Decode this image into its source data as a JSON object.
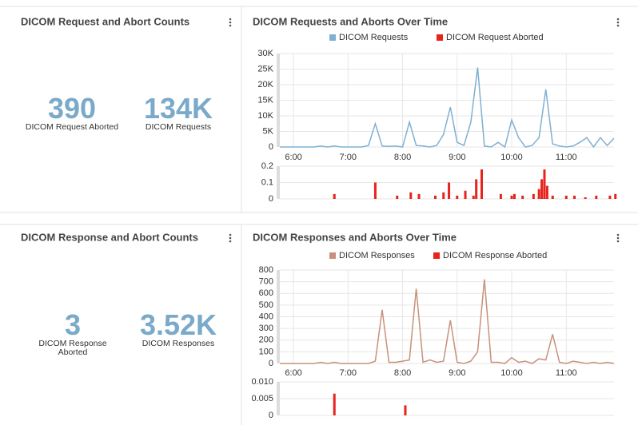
{
  "panels": [
    {
      "title": "DICOM Request and Abort Counts",
      "stats": [
        {
          "value": "390",
          "label": "DICOM Request Aborted"
        },
        {
          "value": "134K",
          "label": "DICOM Requests"
        }
      ]
    },
    {
      "title": "DICOM Requests and Aborts Over Time"
    },
    {
      "title": "DICOM Response and Abort Counts",
      "stats": [
        {
          "value": "3",
          "label": "DICOM Response Aborted"
        },
        {
          "value": "3.52K",
          "label": "DICOM Responses"
        }
      ]
    },
    {
      "title": "DICOM Responses and Aborts Over Time"
    }
  ],
  "chart_data": [
    {
      "type": "line",
      "x": [
        5.75,
        5.875,
        6,
        6.125,
        6.25,
        6.375,
        6.5,
        6.625,
        6.75,
        6.875,
        7,
        7.125,
        7.25,
        7.375,
        7.5,
        7.625,
        7.75,
        7.875,
        8,
        8.125,
        8.25,
        8.375,
        8.5,
        8.625,
        8.75,
        8.875,
        9,
        9.125,
        9.25,
        9.375,
        9.5,
        9.625,
        9.75,
        9.875,
        10,
        10.125,
        10.25,
        10.375,
        10.5,
        10.625,
        10.75,
        10.875,
        11,
        11.125,
        11.25,
        11.375,
        11.5,
        11.625,
        11.75,
        11.875
      ],
      "series": [
        {
          "name": "DICOM Requests",
          "color": "#7fb0d2",
          "values": [
            0,
            0,
            0,
            0,
            0,
            0,
            300,
            0,
            300,
            0,
            0,
            0,
            0,
            500,
            7500,
            300,
            200,
            300,
            0,
            8000,
            500,
            300,
            0,
            500,
            4000,
            12800,
            1500,
            500,
            8000,
            25500,
            300,
            0,
            1500,
            0,
            8700,
            3000,
            0,
            500,
            3000,
            18500,
            1000,
            300,
            0,
            300,
            1500,
            3000,
            0,
            3000,
            500,
            2800
          ]
        }
      ],
      "xlim": [
        5.75,
        11.875
      ],
      "xticks": [
        {
          "value": 6,
          "label": "6:00"
        },
        {
          "value": 7,
          "label": "7:00"
        },
        {
          "value": 8,
          "label": "8:00"
        },
        {
          "value": 9,
          "label": "9:00"
        },
        {
          "value": 10,
          "label": "10:00"
        },
        {
          "value": 11,
          "label": "11:00"
        }
      ],
      "ylim": [
        0,
        30000
      ],
      "yticks": [
        0,
        {
          "value": 5000,
          "label": "5K"
        },
        {
          "value": 10000,
          "label": "10K"
        },
        {
          "value": 15000,
          "label": "15K"
        },
        {
          "value": 20000,
          "label": "20K"
        },
        {
          "value": 25000,
          "label": "25K"
        },
        {
          "value": 30000,
          "label": "30K"
        }
      ],
      "grid": true
    },
    {
      "type": "bar",
      "x": [
        6.75,
        7.5,
        7.9,
        8.15,
        8.3,
        8.6,
        8.75,
        8.85,
        9.0,
        9.15,
        9.3,
        9.35,
        9.45,
        9.8,
        10.0,
        10.05,
        10.2,
        10.4,
        10.5,
        10.55,
        10.6,
        10.65,
        10.75,
        11.0,
        11.15,
        11.35,
        11.55,
        11.8,
        11.9
      ],
      "series": [
        {
          "name": "DICOM Request Aborted",
          "color": "#e8221c",
          "values": [
            0.03,
            0.1,
            0.02,
            0.04,
            0.03,
            0.02,
            0.04,
            0.1,
            0.02,
            0.05,
            0.02,
            0.12,
            0.18,
            0.03,
            0.02,
            0.03,
            0.02,
            0.03,
            0.06,
            0.12,
            0.18,
            0.08,
            0.02,
            0.02,
            0.02,
            0.01,
            0.02,
            0.02,
            0.03
          ]
        }
      ],
      "xlim": [
        5.75,
        11.875
      ],
      "ylim": [
        0,
        0.2
      ],
      "yticks": [
        0,
        0.1,
        0.2
      ],
      "grid": true
    },
    {
      "type": "line",
      "x": [
        5.75,
        5.875,
        6,
        6.125,
        6.25,
        6.375,
        6.5,
        6.625,
        6.75,
        6.875,
        7,
        7.125,
        7.25,
        7.375,
        7.5,
        7.625,
        7.75,
        7.875,
        8,
        8.125,
        8.25,
        8.375,
        8.5,
        8.625,
        8.75,
        8.875,
        9,
        9.125,
        9.25,
        9.375,
        9.5,
        9.625,
        9.75,
        9.875,
        10,
        10.125,
        10.25,
        10.375,
        10.5,
        10.625,
        10.75,
        10.875,
        11,
        11.125,
        11.25,
        11.375,
        11.5,
        11.625,
        11.75,
        11.875
      ],
      "series": [
        {
          "name": "DICOM Responses",
          "color": "#c9917a",
          "values": [
            0,
            0,
            0,
            0,
            0,
            0,
            10,
            0,
            10,
            0,
            0,
            0,
            0,
            0,
            20,
            460,
            10,
            10,
            20,
            30,
            640,
            10,
            30,
            10,
            20,
            370,
            10,
            0,
            20,
            100,
            720,
            10,
            10,
            0,
            50,
            10,
            20,
            0,
            40,
            30,
            250,
            10,
            0,
            20,
            10,
            0,
            10,
            0,
            10,
            0
          ]
        }
      ],
      "xlim": [
        5.75,
        11.875
      ],
      "xticks": [
        {
          "value": 6,
          "label": "6:00"
        },
        {
          "value": 7,
          "label": "7:00"
        },
        {
          "value": 8,
          "label": "8:00"
        },
        {
          "value": 9,
          "label": "9:00"
        },
        {
          "value": 10,
          "label": "10:00"
        },
        {
          "value": 11,
          "label": "11:00"
        }
      ],
      "ylim": [
        0,
        800
      ],
      "yticks": [
        0,
        100,
        200,
        300,
        400,
        500,
        600,
        700,
        800
      ],
      "grid": true
    },
    {
      "type": "bar",
      "x": [
        6.75,
        8.05
      ],
      "series": [
        {
          "name": "DICOM Response Aborted",
          "color": "#e8221c",
          "values": [
            0.0065,
            0.003
          ]
        }
      ],
      "xlim": [
        5.75,
        11.875
      ],
      "ylim": [
        0,
        0.01
      ],
      "yticks": [
        0,
        0.005,
        {
          "value": 0.01,
          "label": "0.010"
        }
      ],
      "grid": true
    }
  ]
}
